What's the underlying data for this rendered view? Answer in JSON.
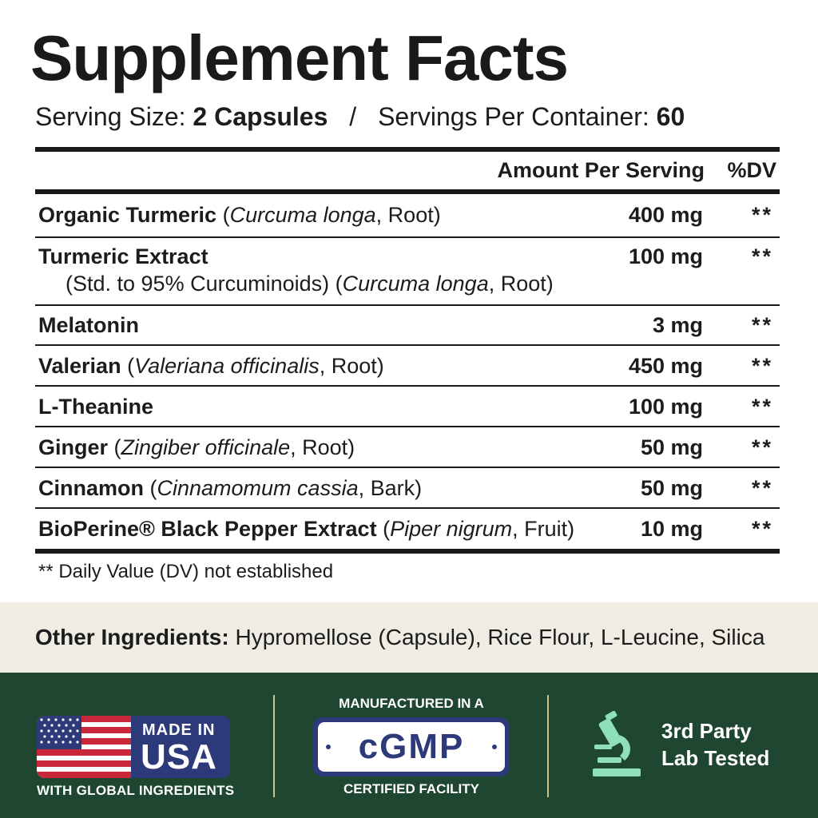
{
  "header": {
    "title": "Supplement Facts",
    "serving_size_label": "Serving Size:",
    "serving_size_value": "2 Capsules",
    "separator": "/",
    "servings_per_container_label": "Servings Per Container:",
    "servings_per_container_value": "60"
  },
  "table": {
    "col_amount": "Amount Per Serving",
    "col_dv": "%DV",
    "rows": [
      {
        "name": "Organic Turmeric",
        "pre": " (",
        "latin": "Curcuma longa",
        "post": ", Root)",
        "amount": "400 mg",
        "dv": "**"
      },
      {
        "name": "Turmeric Extract",
        "sub_pre": "(Std. to 95% Curcuminoids) (",
        "latin": "Curcuma longa",
        "post": ", Root)",
        "amount": "100 mg",
        "dv": "**"
      },
      {
        "name": "Melatonin",
        "amount": "3 mg",
        "dv": "**"
      },
      {
        "name": "Valerian",
        "pre": " (",
        "latin": "Valeriana officinalis",
        "post": ", Root)",
        "amount": "450 mg",
        "dv": "**"
      },
      {
        "name": "L-Theanine",
        "amount": "100 mg",
        "dv": "**"
      },
      {
        "name": "Ginger",
        "pre": " (",
        "latin": "Zingiber officinale",
        "post": ", Root)",
        "amount": "50 mg",
        "dv": "**"
      },
      {
        "name": "Cinnamon",
        "pre": " (",
        "latin": "Cinnamomum cassia",
        "post": ", Bark)",
        "amount": "50 mg",
        "dv": "**"
      },
      {
        "name": "BioPerine® Black Pepper Extract",
        "pre": " (",
        "latin": "Piper nigrum",
        "post": ", Fruit)",
        "amount": "10 mg",
        "dv": "**"
      }
    ],
    "footnote": "** Daily Value (DV) not established"
  },
  "other_ingredients": {
    "label": "Other Ingredients:",
    "value": " Hypromellose (Capsule), Rice Flour, L-Leucine, Silica"
  },
  "badges": {
    "made_in": "MADE IN",
    "usa": "USA",
    "global": "WITH GLOBAL INGREDIENTS",
    "manufactured": "MANUFACTURED IN A",
    "cgmp": "cGMP",
    "certified": "CERTIFIED FACILITY",
    "lab_line1": "3rd Party",
    "lab_line2": "Lab Tested",
    "icons": [
      "us-flag-icon",
      "microscope-icon"
    ]
  },
  "colors": {
    "band_green": "#1e4630",
    "band_beige": "#efede3",
    "badge_navy": "#2c3a7a",
    "flag_red": "#c8283a",
    "microscope_mint": "#8fe0b8"
  }
}
